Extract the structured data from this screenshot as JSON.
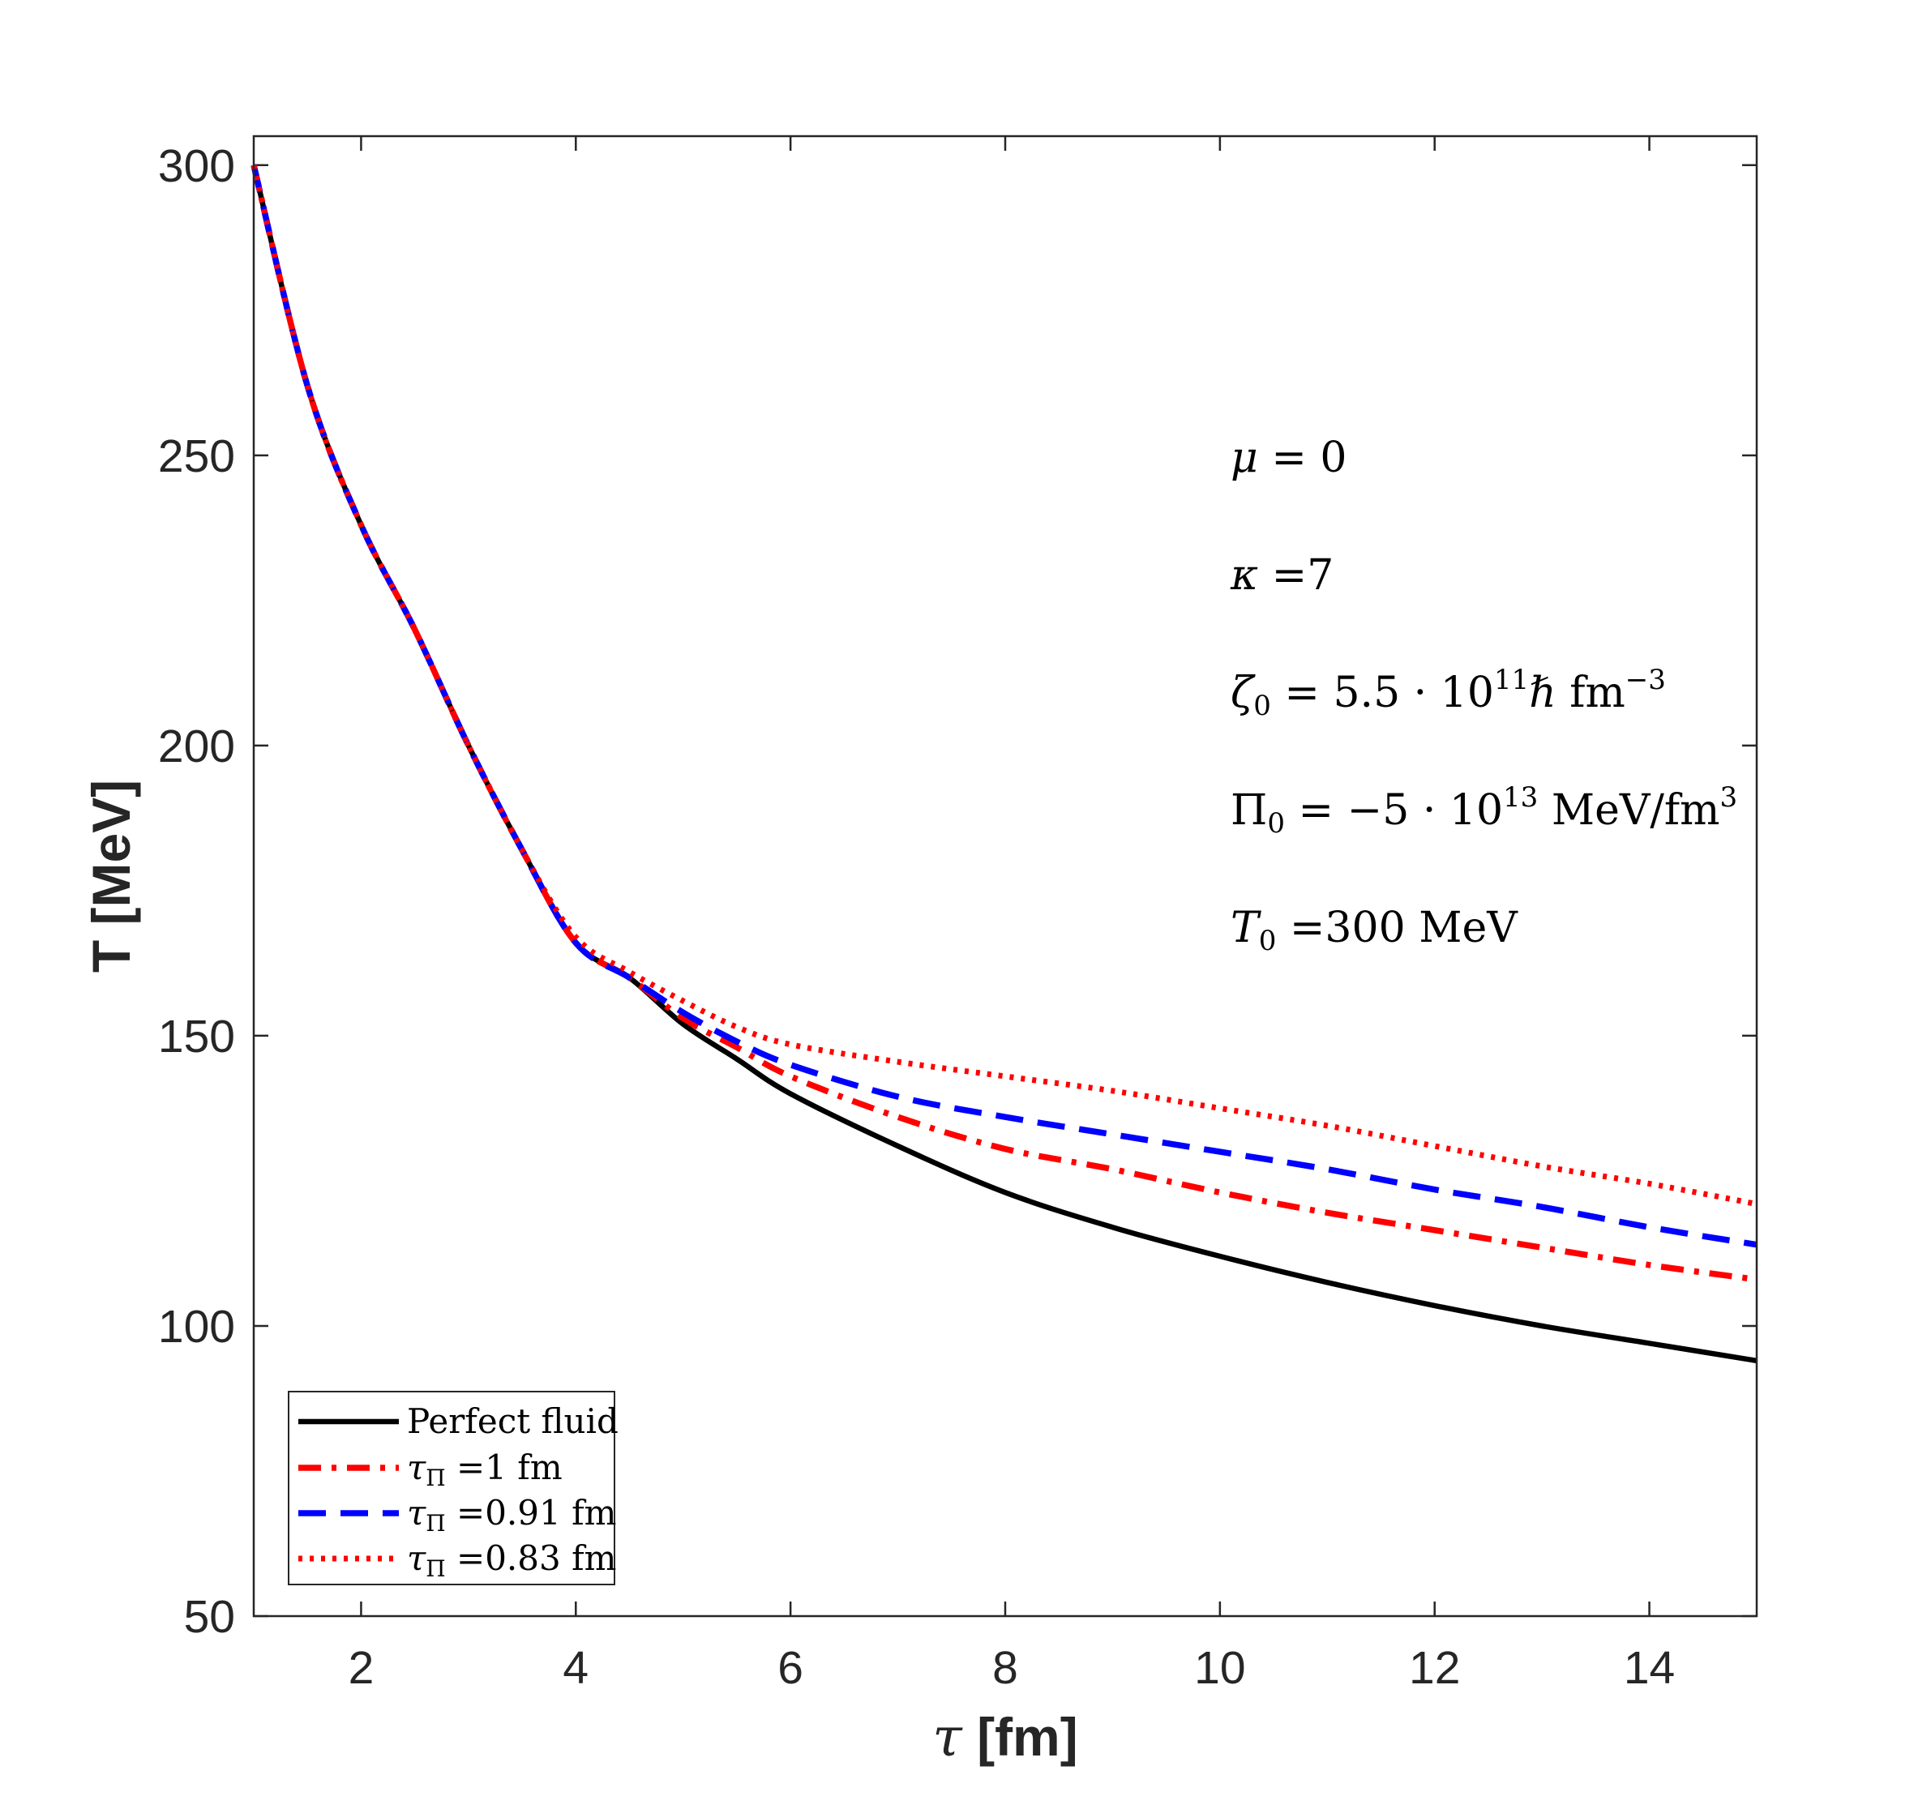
{
  "chart_data": {
    "type": "line",
    "title": "",
    "xlabel": "τ [fm]",
    "ylabel": "T [MeV]",
    "xlim": [
      1,
      15
    ],
    "ylim": [
      50,
      305
    ],
    "xticks": [
      2,
      4,
      6,
      8,
      10,
      12,
      14
    ],
    "yticks": [
      50,
      100,
      150,
      200,
      250,
      300
    ],
    "grid": false,
    "legend_position": "bottom-left",
    "annotations": [
      "μ = 0",
      "κ =7",
      "ζ₀ = 5.5 · 10¹¹ℏ fm⁻³",
      "Π₀ = −5 · 10¹³ MeV/fm³",
      "T₀ =300 MeV"
    ],
    "series": [
      {
        "name": "Perfect fluid",
        "color": "#000000",
        "style": "solid",
        "x": [
          1,
          1.5,
          2,
          2.5,
          3,
          3.5,
          4,
          4.5,
          5,
          5.5,
          6,
          7,
          8,
          9,
          10,
          11,
          12,
          13,
          14,
          15
        ],
        "y": [
          300,
          262,
          238,
          220,
          200,
          182,
          166,
          160,
          152,
          146,
          140,
          131,
          123,
          117,
          112,
          107.5,
          103.5,
          100,
          97,
          94
        ]
      },
      {
        "name": "τ_Π =1 fm",
        "color": "#ff0000",
        "style": "dashdot",
        "x": [
          1,
          1.5,
          2,
          2.5,
          3,
          3.5,
          4,
          4.5,
          5,
          5.5,
          6,
          7,
          8,
          9,
          10,
          11,
          12,
          13,
          14,
          15
        ],
        "y": [
          300,
          262,
          238,
          220,
          200,
          182,
          166,
          160,
          153,
          148,
          143,
          136,
          130.5,
          127,
          123,
          119.5,
          116.5,
          113.5,
          110.5,
          108
        ]
      },
      {
        "name": "τ_Π =0.91 fm",
        "color": "#0000ff",
        "style": "dashed",
        "x": [
          1,
          1.5,
          2,
          2.5,
          3,
          3.5,
          4,
          4.5,
          5,
          5.5,
          6,
          7,
          8,
          9,
          10,
          11,
          12,
          13,
          14,
          15
        ],
        "y": [
          300,
          262,
          238,
          220,
          200,
          182,
          166,
          160,
          154,
          149,
          145,
          139.5,
          136,
          133,
          130,
          127,
          123.5,
          120.5,
          117,
          114
        ]
      },
      {
        "name": "τ_Π =0.83 fm",
        "color": "#ff0000",
        "style": "dotted",
        "x": [
          1,
          1.5,
          2,
          2.5,
          3,
          3.5,
          4,
          4.5,
          5,
          5.5,
          6,
          7,
          8,
          9,
          10,
          11,
          12,
          13,
          14,
          15
        ],
        "y": [
          300,
          262,
          238,
          220,
          200,
          182,
          167,
          161,
          156,
          151.5,
          148.5,
          145.5,
          143,
          140.5,
          137.5,
          134.5,
          131,
          127.5,
          124.5,
          121
        ]
      }
    ]
  }
}
